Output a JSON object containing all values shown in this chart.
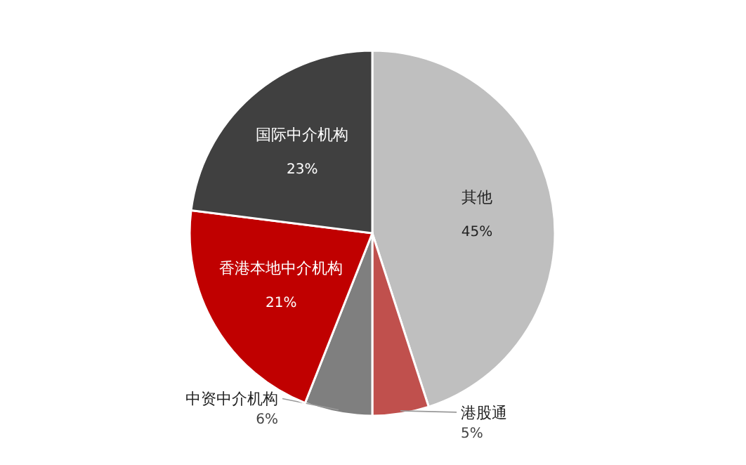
{
  "chart_data": {
    "type": "pie",
    "categories": [
      "其他",
      "港股通",
      "中资中介机构",
      "香港本地中介机构",
      "国际中介机构"
    ],
    "values": [
      45,
      5,
      6,
      21,
      23
    ],
    "colors": [
      "#bfbfbf",
      "#c0504d",
      "#7f7f7f",
      "#c00000",
      "#404040"
    ],
    "value_labels": [
      "45%",
      "5%",
      "6%",
      "21%",
      "23%"
    ],
    "legend": false
  }
}
